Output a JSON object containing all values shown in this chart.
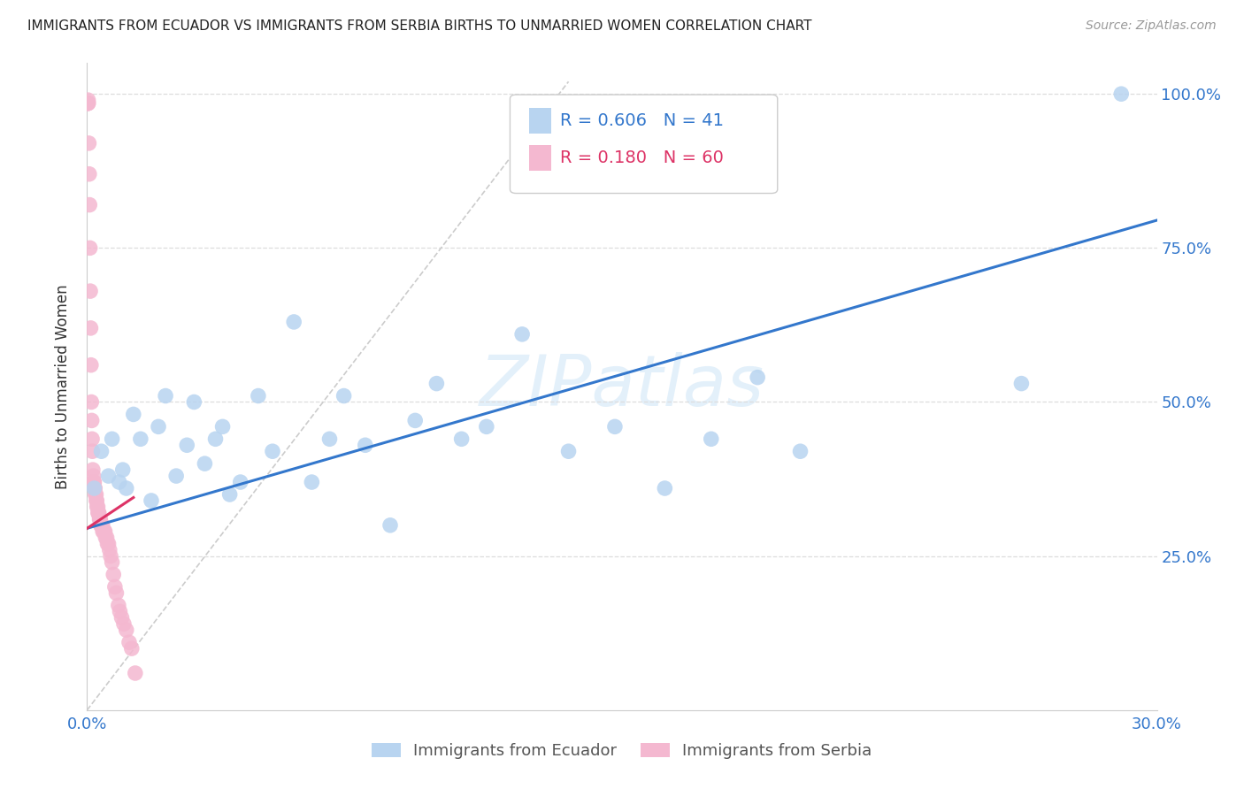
{
  "title": "IMMIGRANTS FROM ECUADOR VS IMMIGRANTS FROM SERBIA BIRTHS TO UNMARRIED WOMEN CORRELATION CHART",
  "source": "Source: ZipAtlas.com",
  "ylabel": "Births to Unmarried Women",
  "watermark": "ZIPatlas",
  "legend1_label": "Immigrants from Ecuador",
  "legend2_label": "Immigrants from Serbia",
  "R_ecuador": 0.606,
  "N_ecuador": 41,
  "R_serbia": 0.18,
  "N_serbia": 60,
  "xmin": 0.0,
  "xmax": 0.3,
  "ymin": 0.0,
  "ymax": 1.05,
  "yticks": [
    0.0,
    0.25,
    0.5,
    0.75,
    1.0
  ],
  "ytick_labels": [
    "",
    "25.0%",
    "50.0%",
    "75.0%",
    "100.0%"
  ],
  "xticks": [
    0.0,
    0.05,
    0.1,
    0.15,
    0.2,
    0.25,
    0.3
  ],
  "xtick_labels": [
    "0.0%",
    "",
    "",
    "",
    "",
    "",
    "30.0%"
  ],
  "color_ecuador": "#b8d4f0",
  "color_serbia": "#f4b8d0",
  "color_trendline_ecuador": "#3377cc",
  "color_trendline_serbia": "#dd3366",
  "color_dashed_line": "#cccccc",
  "ecuador_x": [
    0.002,
    0.004,
    0.006,
    0.007,
    0.009,
    0.01,
    0.011,
    0.013,
    0.015,
    0.018,
    0.02,
    0.022,
    0.025,
    0.028,
    0.03,
    0.033,
    0.036,
    0.038,
    0.04,
    0.043,
    0.048,
    0.052,
    0.058,
    0.063,
    0.068,
    0.072,
    0.078,
    0.085,
    0.092,
    0.098,
    0.105,
    0.112,
    0.122,
    0.135,
    0.148,
    0.162,
    0.175,
    0.188,
    0.2,
    0.262,
    0.29
  ],
  "ecuador_y": [
    0.36,
    0.42,
    0.38,
    0.44,
    0.37,
    0.39,
    0.36,
    0.48,
    0.44,
    0.34,
    0.46,
    0.51,
    0.38,
    0.43,
    0.5,
    0.4,
    0.44,
    0.46,
    0.35,
    0.37,
    0.51,
    0.42,
    0.63,
    0.37,
    0.44,
    0.51,
    0.43,
    0.3,
    0.47,
    0.53,
    0.44,
    0.46,
    0.61,
    0.42,
    0.46,
    0.36,
    0.44,
    0.54,
    0.42,
    0.53,
    1.0
  ],
  "serbia_x": [
    0.0002,
    0.0002,
    0.0003,
    0.0003,
    0.0003,
    0.0005,
    0.0006,
    0.0007,
    0.0008,
    0.0009,
    0.001,
    0.0011,
    0.0012,
    0.0013,
    0.0014,
    0.0015,
    0.0016,
    0.0018,
    0.0019,
    0.002,
    0.0021,
    0.0022,
    0.0023,
    0.0025,
    0.0026,
    0.0027,
    0.0028,
    0.003,
    0.0031,
    0.0032,
    0.0033,
    0.0035,
    0.0036,
    0.0037,
    0.0038,
    0.004,
    0.0042,
    0.0043,
    0.0044,
    0.0046,
    0.0048,
    0.005,
    0.0052,
    0.0055,
    0.0057,
    0.006,
    0.0063,
    0.0066,
    0.007,
    0.0074,
    0.0078,
    0.0082,
    0.0088,
    0.0092,
    0.0097,
    0.0103,
    0.011,
    0.0118,
    0.0125,
    0.0135
  ],
  "serbia_y": [
    0.985,
    0.985,
    0.985,
    0.985,
    0.99,
    0.92,
    0.87,
    0.82,
    0.75,
    0.68,
    0.62,
    0.56,
    0.5,
    0.47,
    0.44,
    0.42,
    0.39,
    0.38,
    0.37,
    0.37,
    0.36,
    0.36,
    0.35,
    0.35,
    0.34,
    0.34,
    0.33,
    0.33,
    0.32,
    0.32,
    0.32,
    0.31,
    0.31,
    0.31,
    0.3,
    0.3,
    0.3,
    0.3,
    0.29,
    0.29,
    0.29,
    0.29,
    0.28,
    0.28,
    0.27,
    0.27,
    0.26,
    0.25,
    0.24,
    0.22,
    0.2,
    0.19,
    0.17,
    0.16,
    0.15,
    0.14,
    0.13,
    0.11,
    0.1,
    0.06
  ]
}
